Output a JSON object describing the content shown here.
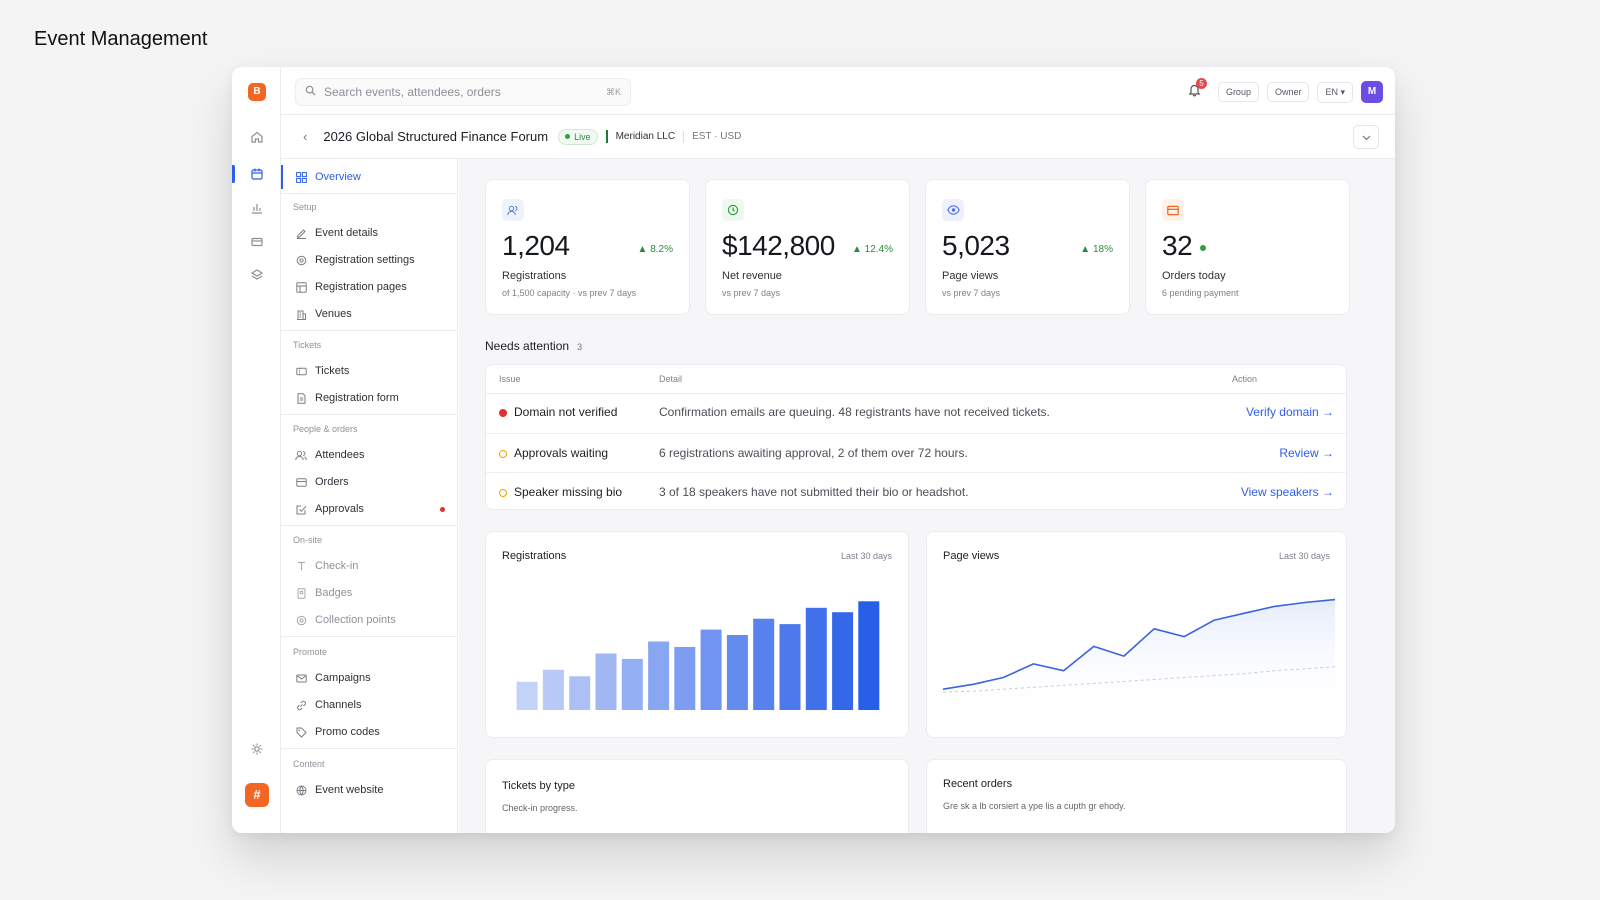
{
  "page_title": "Event Management",
  "brand": {
    "letter": "B",
    "app_letter": "#"
  },
  "search": {
    "placeholder": "Search events, attendees, orders",
    "shortcut": "⌘K"
  },
  "topbar": {
    "notifications": "5",
    "chips": [
      "Group",
      "Owner",
      "EN ▾"
    ],
    "avatar": "M"
  },
  "event": {
    "name": "2026 Global Structured Finance Forum",
    "status": "Live",
    "org": "Meridian LLC",
    "meta": "EST · USD"
  },
  "sidebar": {
    "overview": "Overview",
    "sections": {
      "setup": "Setup",
      "tickets": "Tickets",
      "people": "People & orders",
      "onsite": "On-site",
      "promote": "Promote",
      "content": "Content"
    },
    "items": {
      "event_details": "Event details",
      "registration_settings": "Registration settings",
      "registration_pages": "Registration pages",
      "venues": "Venues",
      "tickets": "Tickets",
      "registration_form": "Registration form",
      "attendees": "Attendees",
      "orders": "Orders",
      "approvals": "Approvals",
      "checkin": "Check-in",
      "badges": "Badges",
      "collection_points": "Collection points",
      "campaigns": "Campaigns",
      "channels": "Channels",
      "promo_codes": "Promo codes",
      "event_website": "Event website"
    }
  },
  "stats": [
    {
      "value": "1,204",
      "delta": "▲ 8.2%",
      "label": "Registrations",
      "sub": "of 1,500 capacity · vs prev 7 days",
      "color": "#5b7bd5"
    },
    {
      "value": "$142,800",
      "delta": "▲ 12.4%",
      "label": "Net revenue",
      "sub": "vs prev 7 days",
      "color": "#2f9e44"
    },
    {
      "value": "5,023",
      "delta": "▲ 18%",
      "label": "Page views",
      "sub": "vs prev 7 days",
      "color": "#4c6ef5"
    },
    {
      "value": "32",
      "delta": "",
      "label": "Orders today",
      "sub": "6 pending payment",
      "color": "#e8590c"
    }
  ],
  "attention": {
    "title": "Needs attention",
    "count": "3",
    "headers": {
      "issue": "Issue",
      "detail": "Detail",
      "action": "Action"
    },
    "rows": [
      {
        "issue": "Domain not verified",
        "detail": "Confirmation emails are queuing. 48 registrants have not received tickets.",
        "action": "Verify domain →",
        "severity": "high"
      },
      {
        "issue": "Approvals waiting",
        "detail": "6 registrations awaiting approval, 2 of them over 72 hours.",
        "action": "Review →",
        "severity": "medium"
      },
      {
        "issue": "Speaker missing bio",
        "detail": "3 of 18 speakers have not submitted their bio or headshot.",
        "action": "View speakers →",
        "severity": "medium"
      }
    ]
  },
  "charts": {
    "registrations": {
      "title": "Registrations",
      "range": "Last 30 days"
    },
    "pageviews": {
      "title": "Page views",
      "range": "Last 30 days"
    }
  },
  "chart_data": [
    {
      "type": "bar",
      "title": "Registrations",
      "categories": [
        "1",
        "2",
        "3",
        "4",
        "5",
        "6",
        "7",
        "8",
        "9",
        "10",
        "11",
        "12",
        "13",
        "14"
      ],
      "values": [
        26,
        37,
        31,
        52,
        47,
        63,
        58,
        74,
        69,
        84,
        79,
        94,
        90,
        100
      ],
      "ylim": [
        0,
        115
      ]
    },
    {
      "type": "line",
      "title": "Page views",
      "x": [
        1,
        2,
        3,
        4,
        5,
        6,
        7,
        8,
        9,
        10,
        11,
        12,
        13,
        14
      ],
      "series": [
        {
          "values": [
            8,
            13,
            20,
            34,
            27,
            52,
            42,
            70,
            62,
            79,
            86,
            93,
            97,
            100
          ]
        },
        {
          "values": [
            5,
            6,
            8,
            10,
            12,
            14,
            16,
            18,
            20,
            22,
            24,
            27,
            29,
            31
          ]
        }
      ],
      "ylim": [
        0,
        115
      ]
    }
  ],
  "bottom_cards": {
    "tickets": {
      "title": "Tickets by type",
      "sub": "Check-in progress."
    },
    "orders": {
      "title": "Recent orders",
      "sub": "Gre sk a lb corsiert a ype lis a cupth gr ehody."
    }
  }
}
